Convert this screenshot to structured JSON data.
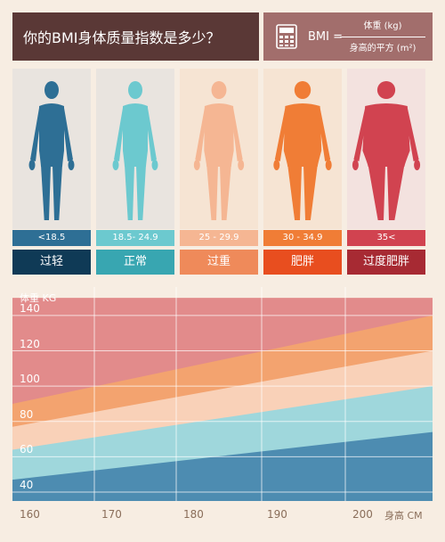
{
  "header": {
    "question": "你的BMI身体质量指数是多少？",
    "bmi_label": "BMI =",
    "numerator": "体重 (kg)",
    "denominator": "身高的平方 (m²)",
    "calc_icon": "calculator-icon"
  },
  "categories": [
    {
      "range": "<18.5",
      "label": "过轻",
      "panel_color": "#e9e4df",
      "body_color": "#2e6f95",
      "range_color": "#2e6f95",
      "label_color": "#0f3a56"
    },
    {
      "range": "18.5- 24.9",
      "label": "正常",
      "panel_color": "#e9e4df",
      "body_color": "#6cc9cf",
      "range_color": "#6cc9cf",
      "label_color": "#38a6b1"
    },
    {
      "range": "25 - 29.9",
      "label": "过重",
      "panel_color": "#f6e4d3",
      "body_color": "#f5b693",
      "range_color": "#f5b693",
      "label_color": "#ef8a5a"
    },
    {
      "range": "30 - 34.9",
      "label": "肥胖",
      "panel_color": "#f6e4d3",
      "body_color": "#f07d36",
      "range_color": "#f07d36",
      "label_color": "#e84e1f"
    },
    {
      "range": "35<",
      "label": "过度肥胖",
      "panel_color": "#f3e2df",
      "body_color": "#d14350",
      "range_color": "#d14350",
      "label_color": "#a72a33"
    }
  ],
  "chart_data": {
    "type": "area",
    "title": "",
    "xlabel": "身高 CM",
    "ylabel": "体重 KG",
    "x_ticks": [
      "160",
      "170",
      "180",
      "190",
      "200"
    ],
    "y_ticks": [
      "140",
      "120",
      "100",
      "80",
      "60",
      "40"
    ],
    "xlim": [
      160,
      200
    ],
    "ylim": [
      40,
      140
    ],
    "bands": [
      {
        "name": "过轻",
        "color": "#4d8cb1",
        "upper_start": 47,
        "upper_end": 74
      },
      {
        "name": "正常",
        "color": "#9fd7dc",
        "upper_start": 64,
        "upper_end": 100
      },
      {
        "name": "过重",
        "color": "#f9d1b8",
        "upper_start": 77,
        "upper_end": 120
      },
      {
        "name": "肥胖",
        "color": "#f3a36f",
        "upper_start": 90,
        "upper_end": 140
      },
      {
        "name": "过度肥胖",
        "color": "#e28b8b",
        "upper_start": 150,
        "upper_end": 150
      }
    ]
  }
}
